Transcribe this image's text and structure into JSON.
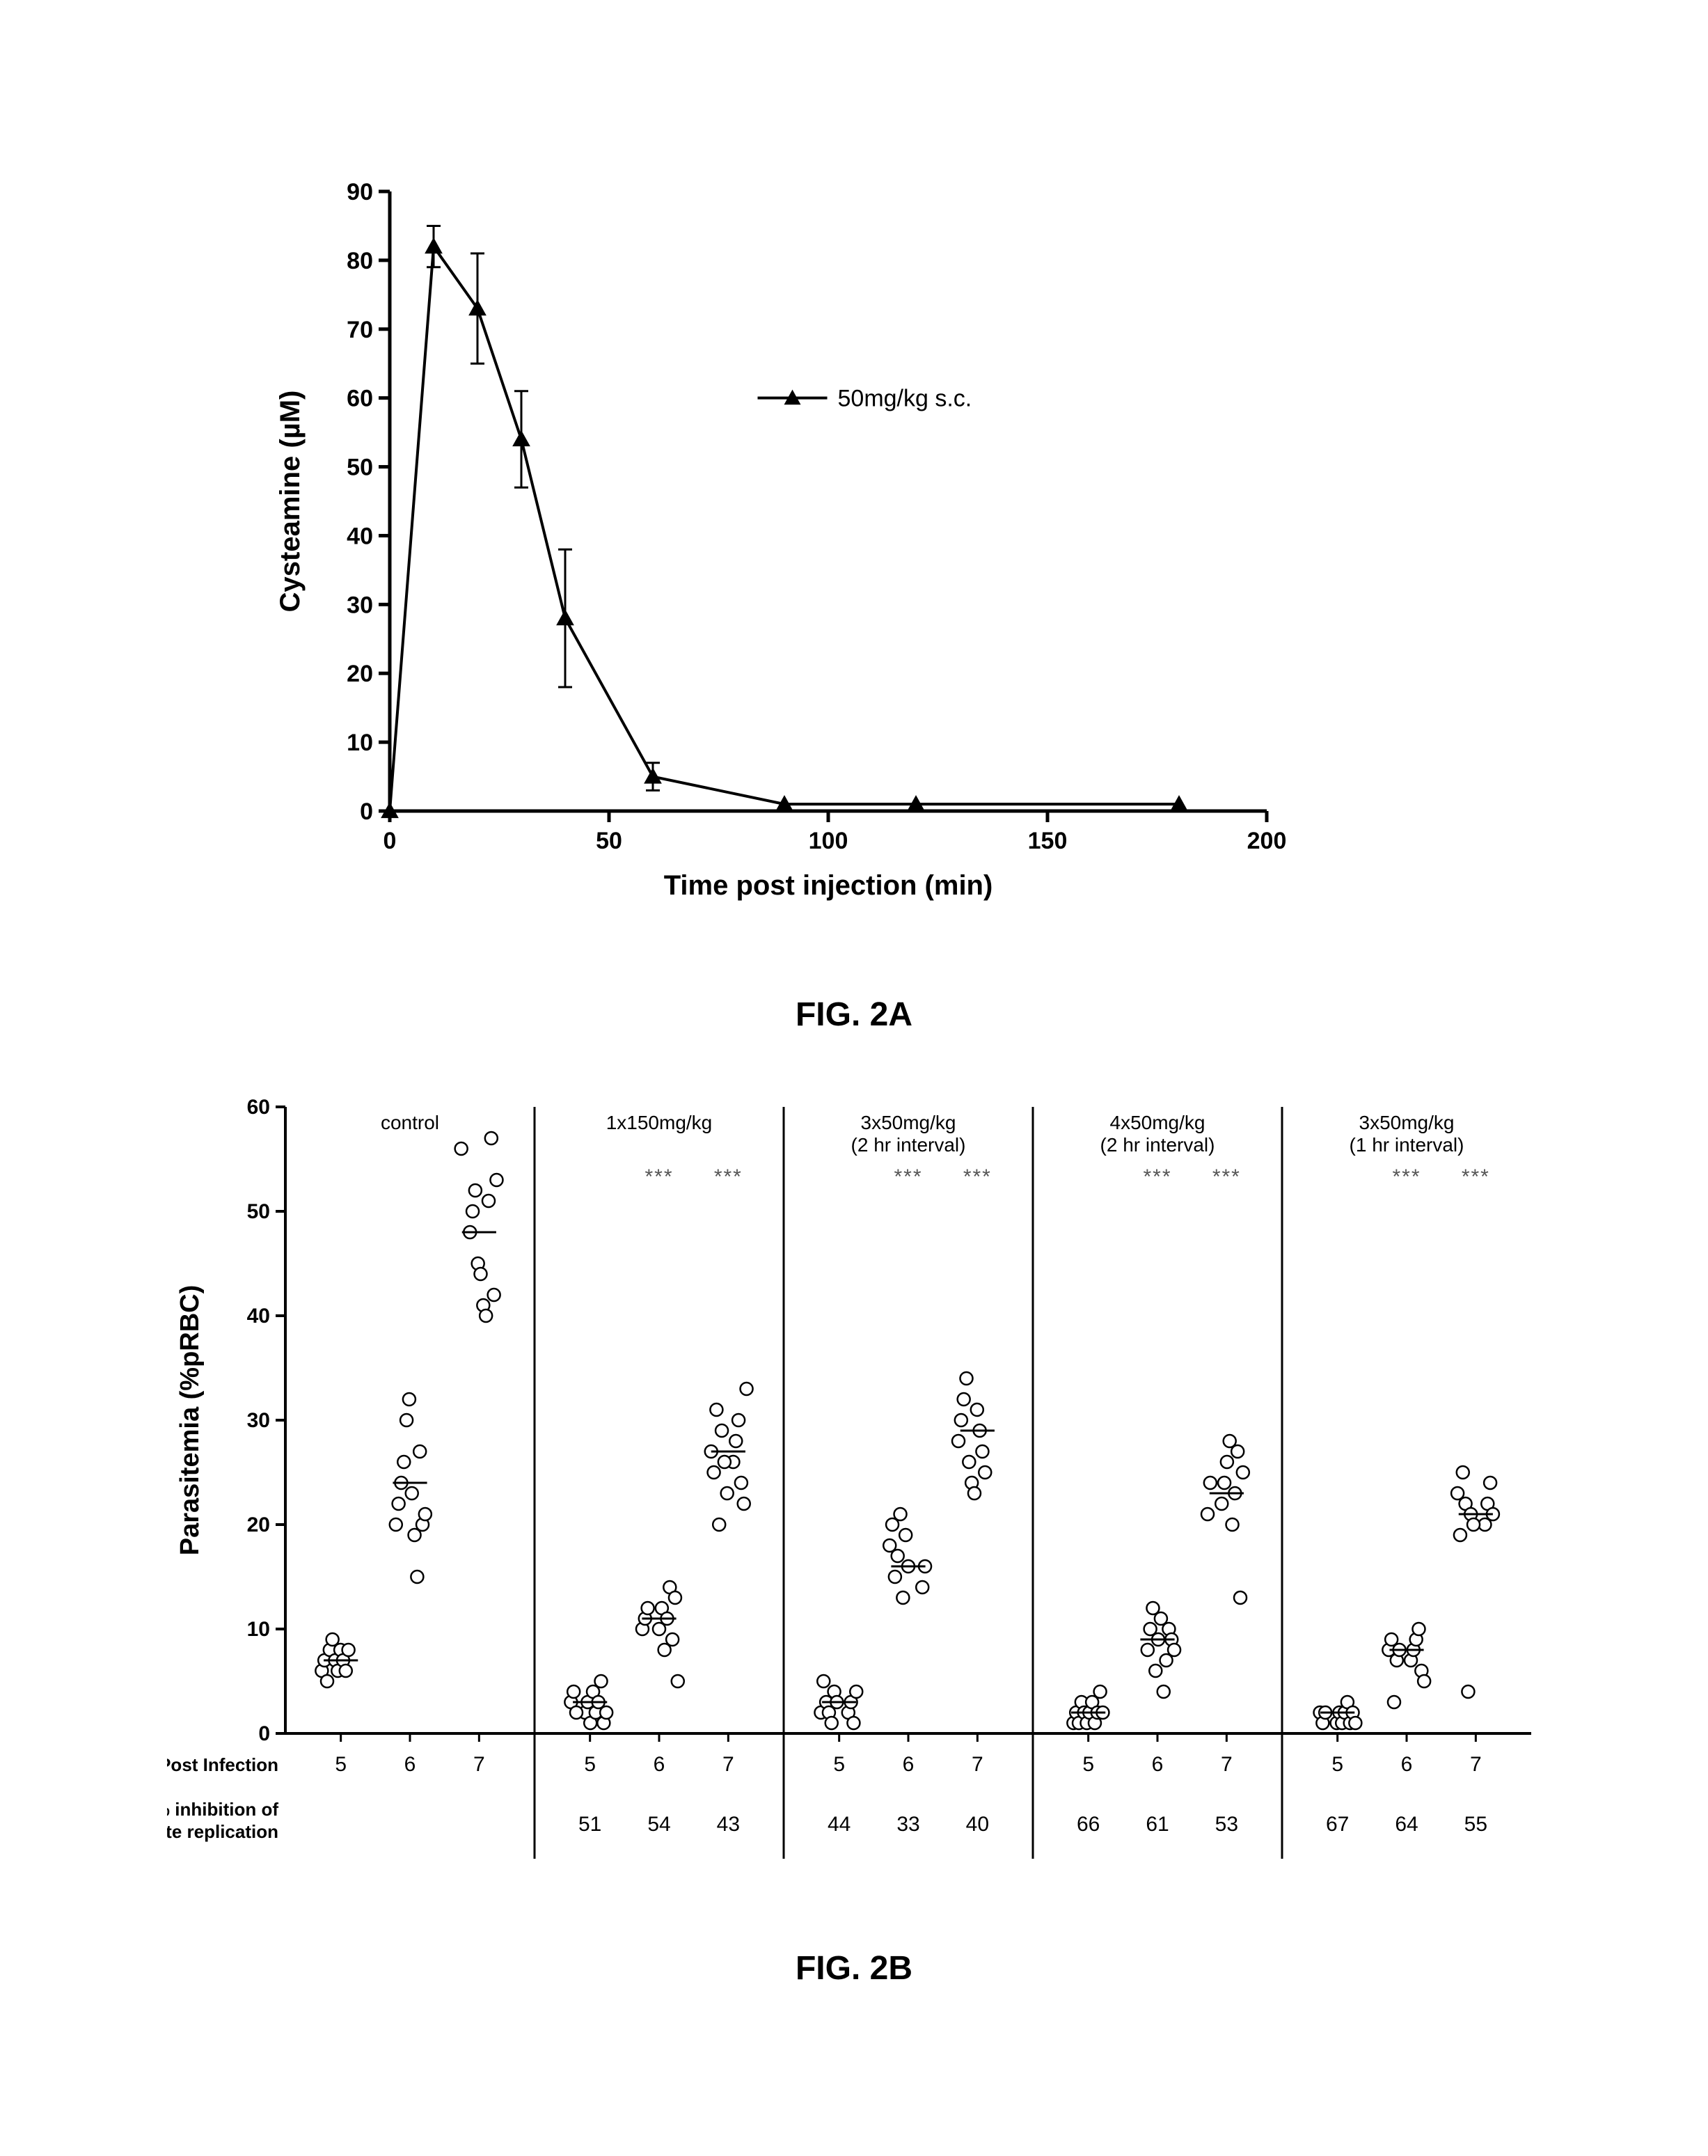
{
  "figA": {
    "label": "FIG. 2A",
    "xlabel": "Time post injection (min)",
    "ylabel": "Cysteamine (µM)",
    "legend": "50mg/kg s.c.",
    "xlim": [
      0,
      200
    ],
    "ylim": [
      0,
      90
    ],
    "xticks": [
      0,
      50,
      100,
      150,
      200
    ],
    "yticks": [
      0,
      10,
      20,
      30,
      40,
      50,
      60,
      70,
      80,
      90
    ],
    "series": {
      "x": [
        0,
        10,
        20,
        30,
        40,
        60,
        90,
        120,
        180
      ],
      "y": [
        0,
        82,
        73,
        54,
        28,
        5,
        1,
        1,
        1
      ],
      "err": [
        0,
        3,
        8,
        7,
        10,
        2,
        0,
        0,
        0
      ]
    },
    "colors": {
      "axis": "#000000",
      "line": "#000000",
      "marker_fill": "#000000",
      "bg": "#ffffff"
    },
    "line_width": 4,
    "marker_size": 12,
    "label_fontsize": 40,
    "tick_fontsize": 34
  },
  "figB": {
    "label": "FIG. 2B",
    "ylabel": "Parasitemia (%pRBC)",
    "row1_label": "Day Post Infection",
    "row2_label": "% inhibition of parasite replication",
    "sig_marker": "***",
    "xlim_per_panel": [
      4.5,
      7.5
    ],
    "ylim": [
      0,
      60
    ],
    "yticks": [
      0,
      10,
      20,
      30,
      40,
      50,
      60
    ],
    "days": [
      5,
      6,
      7
    ],
    "colors": {
      "axis": "#000000",
      "marker_stroke": "#000000",
      "marker_fill": "#ffffff",
      "bg": "#ffffff",
      "text": "#000000",
      "sig": "#555555"
    },
    "marker_radius": 9,
    "marker_stroke_width": 2.5,
    "label_fontsize": 38,
    "tick_fontsize": 30,
    "header_fontsize": 28,
    "row_label_fontsize": 26,
    "panels": [
      {
        "title_lines": [
          "control"
        ],
        "inhibition": [
          "",
          "",
          ""
        ],
        "sig": [
          false,
          false,
          false
        ],
        "points": {
          "5": [
            6,
            7,
            5,
            8,
            9,
            7,
            6,
            8,
            7,
            6,
            8
          ],
          "6": [
            20,
            22,
            24,
            26,
            30,
            32,
            23,
            19,
            15,
            27,
            20,
            21
          ],
          "7": [
            48,
            50,
            52,
            45,
            44,
            41,
            40,
            51,
            57,
            42,
            53,
            56
          ]
        },
        "means": {
          "5": 7,
          "6": 24,
          "7": 48
        }
      },
      {
        "title_lines": [
          "1x150mg/kg"
        ],
        "inhibition": [
          "51",
          "54",
          "43"
        ],
        "sig": [
          false,
          true,
          true
        ],
        "points": {
          "5": [
            2,
            3,
            1,
            4,
            2,
            3,
            5,
            1,
            2,
            3,
            4,
            2
          ],
          "6": [
            10,
            12,
            8,
            11,
            14,
            9,
            13,
            5,
            10,
            11,
            12
          ],
          "7": [
            26,
            28,
            30,
            24,
            22,
            33,
            27,
            25,
            31,
            20,
            29,
            26,
            23
          ]
        },
        "means": {
          "5": 3,
          "6": 11,
          "7": 27
        }
      },
      {
        "title_lines": [
          "3x50mg/kg",
          "(2 hr interval)"
        ],
        "inhibition": [
          "44",
          "33",
          "40"
        ],
        "sig": [
          false,
          true,
          true
        ],
        "points": {
          "5": [
            2,
            3,
            1,
            4,
            2,
            5,
            3,
            2,
            1,
            4,
            3
          ],
          "6": [
            14,
            16,
            18,
            20,
            15,
            17,
            21,
            13,
            19,
            16
          ],
          "7": [
            28,
            30,
            32,
            34,
            26,
            24,
            23,
            31,
            29,
            27,
            25
          ]
        },
        "means": {
          "5": 3,
          "6": 16,
          "7": 29
        }
      },
      {
        "title_lines": [
          "4x50mg/kg",
          "(2 hr interval)"
        ],
        "inhibition": [
          "66",
          "61",
          "53"
        ],
        "sig": [
          false,
          true,
          true
        ],
        "points": {
          "5": [
            1,
            2,
            1,
            3,
            2,
            1,
            2,
            3,
            1,
            2,
            4,
            2
          ],
          "6": [
            8,
            10,
            12,
            6,
            9,
            11,
            4,
            7,
            10,
            9,
            8
          ],
          "7": [
            22,
            24,
            26,
            28,
            20,
            23,
            27,
            13,
            25,
            21,
            24
          ]
        },
        "means": {
          "5": 2,
          "6": 9,
          "7": 23
        }
      },
      {
        "title_lines": [
          "3x50mg/kg",
          "(1 hr interval)"
        ],
        "inhibition": [
          "67",
          "64",
          "55"
        ],
        "sig": [
          false,
          true,
          true
        ],
        "points": {
          "5": [
            1,
            2,
            1,
            2,
            3,
            1,
            2,
            1,
            2,
            1,
            2
          ],
          "6": [
            7,
            8,
            9,
            10,
            6,
            5,
            8,
            9,
            3,
            7,
            8
          ],
          "7": [
            20,
            22,
            24,
            21,
            23,
            19,
            25,
            22,
            4,
            21,
            20
          ]
        },
        "means": {
          "5": 2,
          "6": 8,
          "7": 21
        }
      }
    ]
  }
}
